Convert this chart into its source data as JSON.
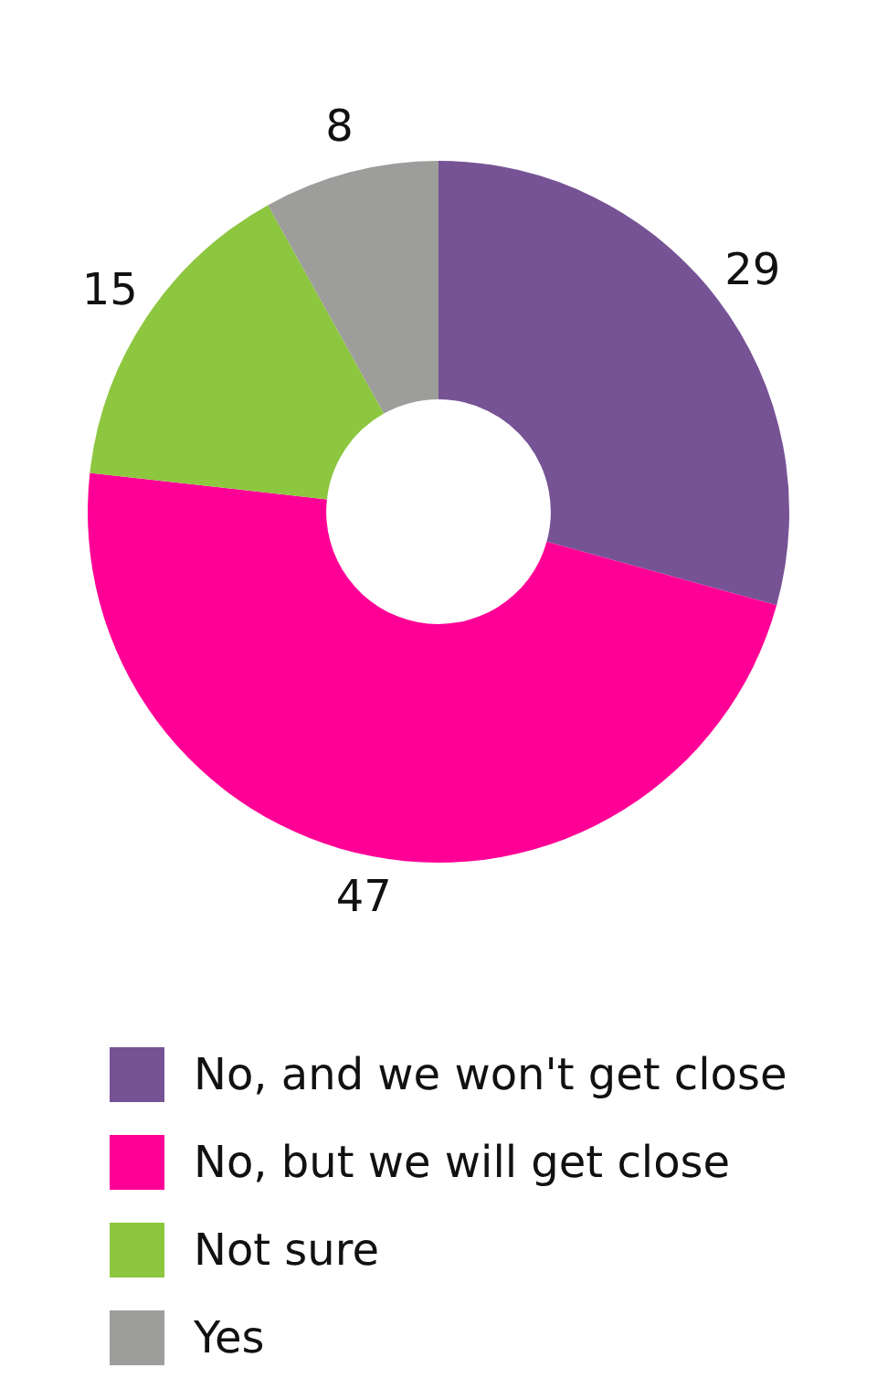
{
  "chart_data": {
    "type": "donut",
    "categories": [
      "No, and we won't get close",
      "No, but we will get close",
      "Not sure",
      "Yes"
    ],
    "values": [
      29,
      47,
      15,
      8
    ],
    "colors": [
      "#765394",
      "#ff0096",
      "#8dc63f",
      "#9d9d9b"
    ],
    "data_labels": true,
    "legend": "bottom"
  }
}
